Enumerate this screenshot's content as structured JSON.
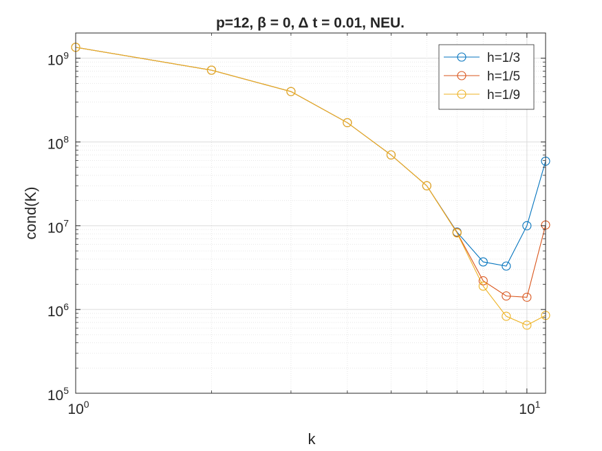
{
  "chart_data": {
    "type": "line",
    "title": "p=12, β = 0, Δ t = 0.01,  NEU.",
    "xlabel": "k",
    "ylabel": "cond(K)",
    "xscale": "log",
    "yscale": "log",
    "xlim": [
      1,
      11
    ],
    "ylim": [
      100000,
      2000000000
    ],
    "xticks": [
      {
        "value": 1,
        "base": "10",
        "exp": "0"
      },
      {
        "value": 10,
        "base": "10",
        "exp": "1"
      }
    ],
    "yticks": [
      {
        "value": 100000,
        "base": "10",
        "exp": "5"
      },
      {
        "value": 1000000,
        "base": "10",
        "exp": "6"
      },
      {
        "value": 10000000,
        "base": "10",
        "exp": "7"
      },
      {
        "value": 100000000,
        "base": "10",
        "exp": "8"
      },
      {
        "value": 1000000000,
        "base": "10",
        "exp": "9"
      }
    ],
    "grid": true,
    "legend_position": "top-right",
    "series": [
      {
        "name": "h=1/3",
        "color": "#0072BD",
        "x": [
          1,
          2,
          3,
          4,
          5,
          6,
          7,
          8,
          9,
          10,
          11
        ],
        "y": [
          1350000000,
          720000000,
          400000000,
          170000000,
          70000000,
          30000000,
          8400000,
          3700000,
          3300000,
          10000000,
          59000000
        ]
      },
      {
        "name": "h=1/5",
        "color": "#D95319",
        "x": [
          1,
          2,
          3,
          4,
          5,
          6,
          7,
          8,
          9,
          10,
          11
        ],
        "y": [
          1350000000,
          720000000,
          400000000,
          170000000,
          70000000,
          30000000,
          8300000,
          2200000,
          1450000,
          1400000,
          10200000
        ]
      },
      {
        "name": "h=1/9",
        "color": "#EDB120",
        "x": [
          1,
          2,
          3,
          4,
          5,
          6,
          7,
          8,
          9,
          10,
          11
        ],
        "y": [
          1350000000,
          720000000,
          400000000,
          170000000,
          70000000,
          30000000,
          8200000,
          1900000,
          830000,
          650000,
          850000
        ]
      }
    ]
  }
}
